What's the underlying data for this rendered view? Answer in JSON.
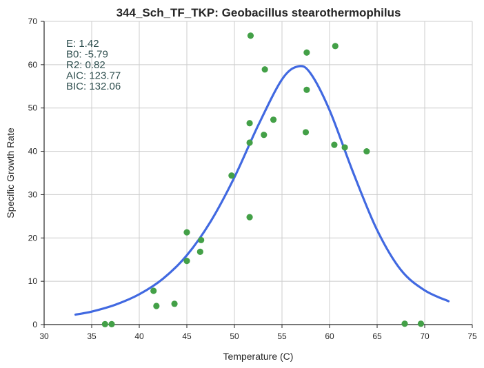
{
  "chart_data": {
    "type": "scatter",
    "title": "344_Sch_TF_TKP: Geobacillus stearothermophilus",
    "xlabel": "Temperature (C)",
    "ylabel": "Specific Growth Rate",
    "xlim": [
      30,
      75
    ],
    "ylim": [
      0,
      70
    ],
    "xticks": [
      30,
      35,
      40,
      45,
      50,
      55,
      60,
      65,
      70,
      75
    ],
    "yticks": [
      0,
      10,
      20,
      30,
      40,
      50,
      60,
      70
    ],
    "grid": true,
    "colors": {
      "points": "#43a047",
      "curve": "#4169e1",
      "grid": "#cccccc",
      "axis": "#262626"
    },
    "series": [
      {
        "type": "scatter",
        "x": [
          36.4,
          37.1,
          41.5,
          41.8,
          43.7,
          45.0,
          45.0,
          46.4,
          46.5,
          49.7,
          51.6,
          51.6,
          51.6,
          51.7,
          53.1,
          53.2,
          54.1,
          57.5,
          57.6,
          57.6,
          60.5,
          60.6,
          61.6,
          63.9,
          67.9,
          69.6
        ],
        "y": [
          0.1,
          0.1,
          7.8,
          4.3,
          4.8,
          21.3,
          14.7,
          16.8,
          19.5,
          34.4,
          24.8,
          42.0,
          46.5,
          66.7,
          43.8,
          58.9,
          47.3,
          44.4,
          62.8,
          54.2,
          41.5,
          64.3,
          40.9,
          40.0,
          0.2,
          0.2
        ]
      },
      {
        "type": "line",
        "x": [
          33.3,
          35.0,
          37.5,
          40.0,
          42.5,
          45.0,
          47.5,
          50.0,
          52.5,
          55.0,
          56.7,
          58.0,
          60.0,
          62.5,
          65.0,
          67.5,
          70.0,
          72.5
        ],
        "y": [
          2.3,
          3.0,
          4.6,
          7.0,
          10.6,
          16.0,
          23.8,
          34.0,
          46.0,
          56.6,
          59.6,
          58.0,
          49.5,
          35.0,
          21.8,
          12.6,
          7.9,
          5.4
        ]
      }
    ],
    "annotations": [
      "E:  1.42",
      "B0:  -5.79",
      "R2:  0.82",
      "AIC: 123.77",
      "BIC: 132.06"
    ]
  }
}
